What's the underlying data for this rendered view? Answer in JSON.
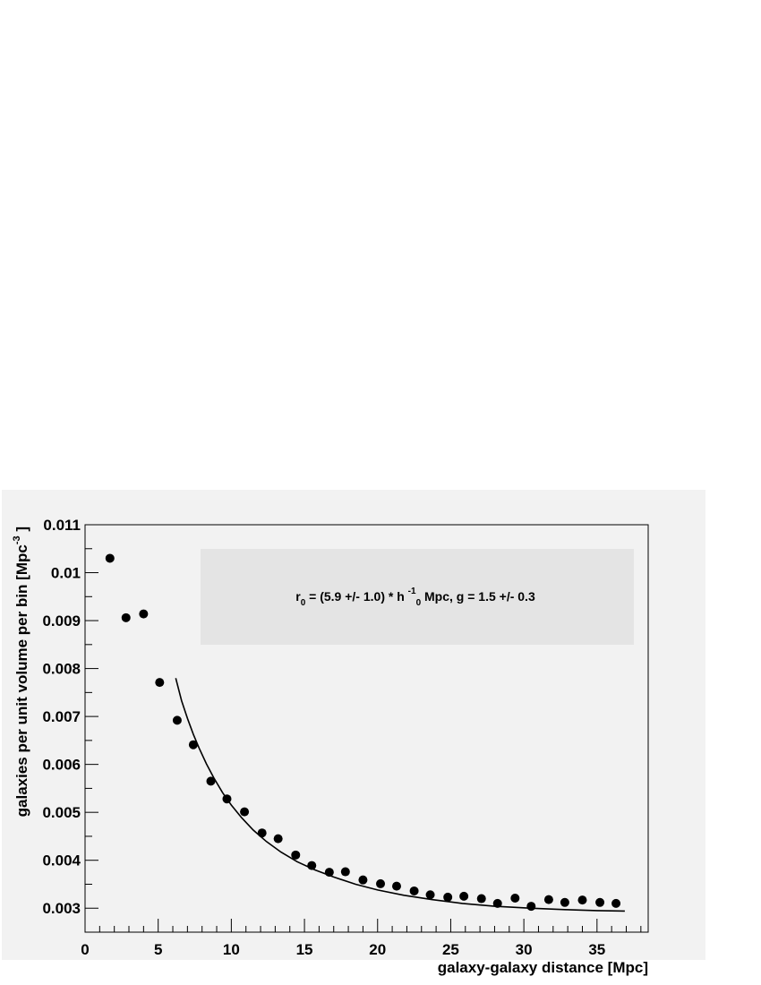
{
  "chart_data": {
    "type": "scatter",
    "xlabel": "galaxy-galaxy distance [Mpc]",
    "ylabel_main": "galaxies per unit volume per bin [Mpc",
    "ylabel_sup": "-3",
    "ylabel_end": " ]",
    "xlim": [
      0,
      38.5
    ],
    "ylim": [
      0.0025,
      0.011
    ],
    "x_ticks": [
      0,
      5,
      10,
      15,
      20,
      25,
      30,
      35
    ],
    "x_tick_labels": [
      "0",
      "5",
      "10",
      "15",
      "20",
      "25",
      "30",
      "35"
    ],
    "y_ticks": [
      0.003,
      0.004,
      0.005,
      0.006,
      0.007,
      0.008,
      0.009,
      0.01,
      0.011
    ],
    "y_tick_labels": [
      "0.003",
      "0.004",
      "0.005",
      "0.006",
      "0.007",
      "0.008",
      "0.009",
      "0.01",
      "0.011"
    ],
    "legend_text": {
      "a": "r",
      "a_sub": "0",
      "b": " = (5.9 +/- 1.0) * h ",
      "b_sup": "-1",
      "b_sub": "0",
      "c": " Mpc, g = 1.5 +/- 0.3"
    },
    "legend_position": "top-right",
    "series": [
      {
        "x": [
          1.7,
          2.8,
          4.0,
          5.1,
          6.3,
          7.4,
          8.6,
          9.7,
          10.9,
          12.1,
          13.2,
          14.4,
          15.5,
          16.7,
          17.8,
          19.0,
          20.2,
          21.3,
          22.5,
          23.6,
          24.8,
          25.9,
          27.1,
          28.2,
          29.4,
          30.5,
          31.7,
          32.8,
          34.0,
          35.2,
          36.3
        ],
        "y": [
          0.0103,
          0.00906,
          0.00914,
          0.00771,
          0.00692,
          0.00641,
          0.00565,
          0.00528,
          0.00501,
          0.00457,
          0.00445,
          0.00411,
          0.00389,
          0.00375,
          0.00376,
          0.00359,
          0.00351,
          0.00346,
          0.00336,
          0.00328,
          0.00323,
          0.00325,
          0.0032,
          0.0031,
          0.00321,
          0.00304,
          0.00318,
          0.00312,
          0.00317,
          0.00312,
          0.0031
        ]
      }
    ],
    "fit": {
      "x": [
        6.2,
        6.6,
        7.0,
        7.4,
        7.8,
        8.3,
        8.8,
        9.4,
        10.0,
        10.7,
        11.5,
        12.4,
        13.4,
        14.5,
        15.7,
        17.0,
        18.5,
        20.0,
        21.8,
        23.7,
        25.8,
        28.0,
        30.4,
        32.8,
        35.0,
        36.9
      ],
      "y": [
        0.0078,
        0.00733,
        0.00696,
        0.00663,
        0.00634,
        0.00601,
        0.00572,
        0.00541,
        0.00515,
        0.00489,
        0.00463,
        0.00439,
        0.00417,
        0.00397,
        0.0038,
        0.00365,
        0.0035,
        0.00338,
        0.00327,
        0.00318,
        0.0031,
        0.00304,
        0.003,
        0.00297,
        0.00295,
        0.00294
      ]
    }
  }
}
